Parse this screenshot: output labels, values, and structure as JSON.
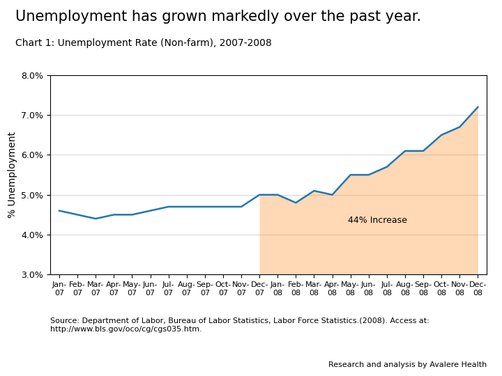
{
  "chart_data": {
    "type": "line",
    "title": "Unemployment has grown markedly over the past year.",
    "subtitle": "Chart 1: Unemployment Rate (Non-farm), 2007-2008",
    "ylabel": "% Unemployment",
    "annotations": [
      "44% Increase"
    ],
    "source": "Source: Department of Labor, Bureau of Labor Statistics, Labor Force Statistics.(2008). Access at:\nhttp://www.bls.gov/oco/cg/cgs035.htm.",
    "footer": "Research and analysis by Avalere Health",
    "categories": [
      "Jan-\n07",
      "Feb-\n07",
      "Mar-\n07",
      "Apr-\n07",
      "May-\n07",
      "Jun-\n07",
      "Jul-\n07",
      "Aug-\n07",
      "Sep-\n07",
      "Oct-\n07",
      "Nov-\n07",
      "Dec-\n07",
      "Jan-\n08",
      "Feb-\n08",
      "Mar-\n08",
      "Apr-\n08",
      "May-\n08",
      "Jun-\n08",
      "Jul-\n08",
      "Aug-\n08",
      "Sep-\n08",
      "Oct-\n08",
      "Nov-\n08",
      "Dec-\n08"
    ],
    "series": [
      {
        "type": "area",
        "values": [
          null,
          null,
          null,
          null,
          null,
          null,
          null,
          null,
          null,
          null,
          null,
          5.0,
          5.0,
          4.8,
          5.1,
          5.0,
          5.5,
          5.5,
          5.7,
          6.1,
          6.1,
          6.5,
          6.7,
          7.2
        ]
      },
      {
        "type": "line",
        "values": [
          4.6,
          4.5,
          4.4,
          4.5,
          4.5,
          4.6,
          4.7,
          4.7,
          4.7,
          4.7,
          4.7,
          5.0,
          5.0,
          4.8,
          5.1,
          5.0,
          5.5,
          5.5,
          5.7,
          6.1,
          6.1,
          6.5,
          6.7,
          7.2
        ]
      }
    ],
    "ylim": [
      3.0,
      8.0
    ],
    "yticks": [
      {
        "value": 3.0,
        "label": "3.0%"
      },
      {
        "value": 4.0,
        "label": "4.0%"
      },
      {
        "value": 5.0,
        "label": "5.0%"
      },
      {
        "value": 6.0,
        "label": "6.0%"
      },
      {
        "value": 7.0,
        "label": "7.0%"
      },
      {
        "value": 8.0,
        "label": "8.0%"
      }
    ],
    "grid": "y"
  }
}
